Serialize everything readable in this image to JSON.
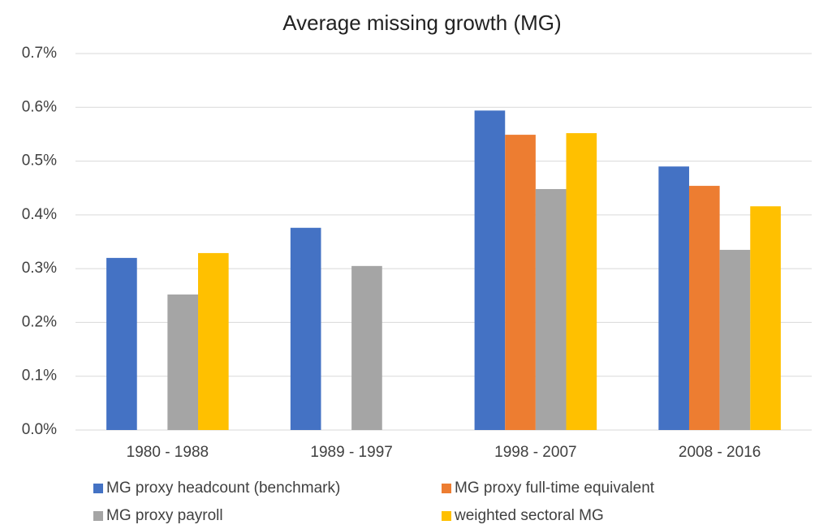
{
  "chart_data": {
    "type": "bar",
    "title": "Average missing growth (MG)",
    "categories": [
      "1980 - 1988",
      "1989 - 1997",
      "1998 - 2007",
      "2008 - 2016"
    ],
    "series": [
      {
        "name": "MG proxy headcount (benchmark)",
        "color": "#4472c4",
        "values": [
          0.32,
          0.376,
          0.594,
          0.49
        ]
      },
      {
        "name": "MG proxy full-time equivalent",
        "color": "#ed7d31",
        "values": [
          null,
          null,
          0.549,
          0.454
        ]
      },
      {
        "name": "MG proxy payroll",
        "color": "#a5a5a5",
        "values": [
          0.252,
          0.305,
          0.448,
          0.335
        ]
      },
      {
        "name": "weighted sectoral MG",
        "color": "#ffc000",
        "values": [
          0.329,
          null,
          0.552,
          0.416
        ]
      }
    ],
    "ylim": [
      0,
      0.7
    ],
    "yticks": [
      {
        "value": 0,
        "label": "0.0%"
      },
      {
        "value": 0.1,
        "label": "0.1%"
      },
      {
        "value": 0.2,
        "label": "0.2%"
      },
      {
        "value": 0.3,
        "label": "0.3%"
      },
      {
        "value": 0.4,
        "label": "0.4%"
      },
      {
        "value": 0.5,
        "label": "0.5%"
      },
      {
        "value": 0.6,
        "label": "0.6%"
      },
      {
        "value": 0.7,
        "label": "0.7%"
      }
    ],
    "grid": true,
    "legend": "bottom"
  }
}
